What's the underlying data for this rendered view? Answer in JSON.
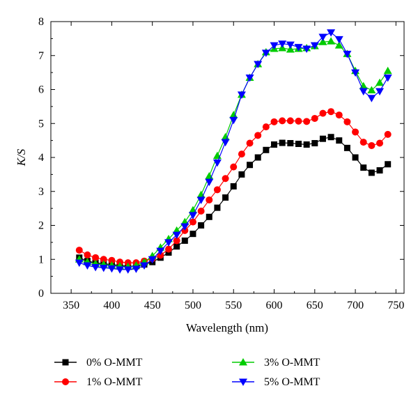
{
  "chart_data": {
    "type": "line",
    "xlabel": "Wavelength (nm)",
    "ylabel": "K/S",
    "xlim": [
      325,
      760
    ],
    "ylim": [
      0,
      8
    ],
    "xticks": [
      350,
      400,
      450,
      500,
      550,
      600,
      650,
      700,
      750
    ],
    "yticks": [
      0,
      1,
      2,
      3,
      4,
      5,
      6,
      7,
      8
    ],
    "grid": false,
    "legend_position": "bottom",
    "x": [
      360,
      370,
      380,
      390,
      400,
      410,
      420,
      430,
      440,
      450,
      460,
      470,
      480,
      490,
      500,
      510,
      520,
      530,
      540,
      550,
      560,
      570,
      580,
      590,
      600,
      610,
      620,
      630,
      640,
      650,
      660,
      670,
      680,
      690,
      700,
      710,
      720,
      730,
      740
    ],
    "series": [
      {
        "name": "0% O-MMT",
        "color": "#000000",
        "marker": "square",
        "values": [
          1.05,
          0.95,
          0.9,
          0.87,
          0.85,
          0.82,
          0.8,
          0.8,
          0.85,
          0.92,
          1.05,
          1.2,
          1.38,
          1.55,
          1.75,
          2.0,
          2.25,
          2.52,
          2.82,
          3.15,
          3.5,
          3.78,
          4.0,
          4.22,
          4.38,
          4.43,
          4.42,
          4.4,
          4.38,
          4.42,
          4.55,
          4.6,
          4.5,
          4.28,
          4.0,
          3.7,
          3.55,
          3.62,
          3.8
        ]
      },
      {
        "name": "1% O-MMT",
        "color": "#ff0000",
        "marker": "circle",
        "values": [
          1.27,
          1.13,
          1.05,
          1.0,
          0.97,
          0.92,
          0.9,
          0.9,
          0.95,
          1.02,
          1.12,
          1.3,
          1.55,
          1.85,
          2.1,
          2.42,
          2.75,
          3.05,
          3.38,
          3.72,
          4.1,
          4.42,
          4.65,
          4.9,
          5.05,
          5.08,
          5.08,
          5.07,
          5.06,
          5.15,
          5.3,
          5.35,
          5.25,
          5.05,
          4.75,
          4.45,
          4.35,
          4.42,
          4.68
        ]
      },
      {
        "name": "3% O-MMT",
        "color": "#00cc00",
        "marker": "triangle-up",
        "values": [
          1.0,
          0.92,
          0.87,
          0.85,
          0.82,
          0.8,
          0.78,
          0.82,
          0.92,
          1.1,
          1.35,
          1.6,
          1.85,
          2.1,
          2.45,
          2.9,
          3.45,
          4.05,
          4.6,
          5.25,
          5.85,
          6.35,
          6.75,
          7.1,
          7.2,
          7.22,
          7.18,
          7.2,
          7.22,
          7.28,
          7.4,
          7.42,
          7.3,
          7.05,
          6.55,
          6.1,
          5.98,
          6.2,
          6.55
        ]
      },
      {
        "name": "5% O-MMT",
        "color": "#0000ff",
        "marker": "triangle-down",
        "values": [
          0.9,
          0.82,
          0.77,
          0.75,
          0.73,
          0.7,
          0.7,
          0.72,
          0.82,
          1.0,
          1.25,
          1.5,
          1.72,
          1.97,
          2.3,
          2.75,
          3.28,
          3.85,
          4.45,
          5.1,
          5.85,
          6.35,
          6.75,
          7.08,
          7.3,
          7.35,
          7.32,
          7.25,
          7.2,
          7.3,
          7.55,
          7.68,
          7.48,
          7.05,
          6.5,
          5.95,
          5.75,
          5.95,
          6.35
        ]
      }
    ]
  }
}
